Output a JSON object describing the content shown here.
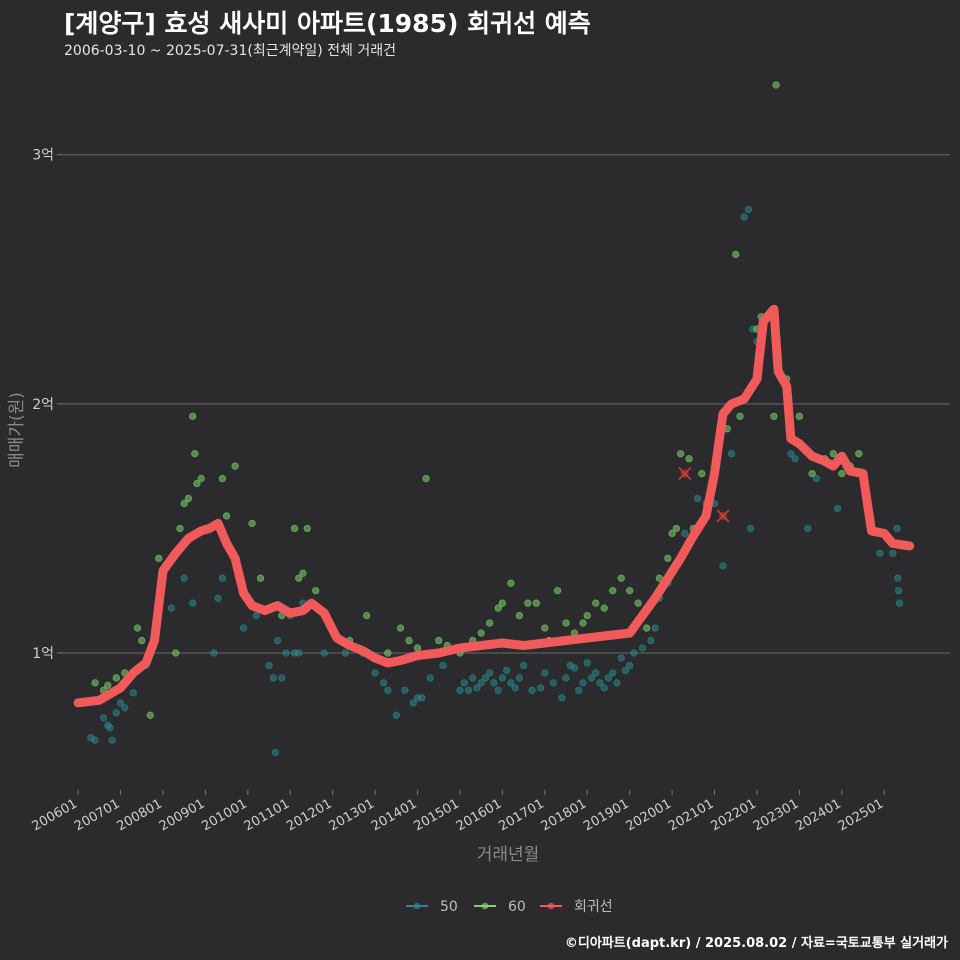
{
  "chart_data": {
    "type": "scatter",
    "title": "[계양구] 효성 새사미 아파트(1985) 회귀선 예측",
    "subtitle": "2006-03-10 ~ 2025-07-31(최근계약일) 전체 거래건",
    "xlabel": "거래년월",
    "ylabel": "매매가(원)",
    "ylim": [
      0.45,
      3.3
    ],
    "yticks": [
      {
        "value": 1,
        "label": "1억"
      },
      {
        "value": 2,
        "label": "2억"
      },
      {
        "value": 3,
        "label": "3억"
      }
    ],
    "xlim": [
      2005.62,
      2026.55
    ],
    "xticks": [
      {
        "value": 2006.0,
        "label": "200601"
      },
      {
        "value": 2007.0,
        "label": "200701"
      },
      {
        "value": 2008.0,
        "label": "200801"
      },
      {
        "value": 2009.0,
        "label": "200901"
      },
      {
        "value": 2010.0,
        "label": "201001"
      },
      {
        "value": 2011.0,
        "label": "201101"
      },
      {
        "value": 2012.0,
        "label": "201201"
      },
      {
        "value": 2013.0,
        "label": "201301"
      },
      {
        "value": 2014.0,
        "label": "201401"
      },
      {
        "value": 2015.0,
        "label": "201501"
      },
      {
        "value": 2016.0,
        "label": "201601"
      },
      {
        "value": 2017.0,
        "label": "201701"
      },
      {
        "value": 2018.0,
        "label": "201801"
      },
      {
        "value": 2019.0,
        "label": "201901"
      },
      {
        "value": 2020.0,
        "label": "202001"
      },
      {
        "value": 2021.0,
        "label": "202101"
      },
      {
        "value": 2022.0,
        "label": "202201"
      },
      {
        "value": 2023.0,
        "label": "202301"
      },
      {
        "value": 2024.0,
        "label": "202401"
      },
      {
        "value": 2025.0,
        "label": "202501"
      }
    ],
    "legend": {
      "position": "bottom",
      "items": [
        {
          "label": "50",
          "color": "#2a8a8a"
        },
        {
          "label": "60",
          "color": "#7ed36b"
        },
        {
          "label": "회귀선",
          "color": "#f05a5a"
        }
      ]
    },
    "series": [
      {
        "name": "50",
        "color": "#2a8a8a",
        "points": [
          [
            2006.3,
            0.66
          ],
          [
            2006.4,
            0.65
          ],
          [
            2006.6,
            0.74
          ],
          [
            2006.7,
            0.71
          ],
          [
            2006.75,
            0.7
          ],
          [
            2006.8,
            0.65
          ],
          [
            2006.9,
            0.76
          ],
          [
            2007.0,
            0.8
          ],
          [
            2007.1,
            0.78
          ],
          [
            2007.3,
            0.84
          ],
          [
            2007.6,
            0.95
          ],
          [
            2008.2,
            1.18
          ],
          [
            2008.5,
            1.3
          ],
          [
            2008.7,
            1.2
          ],
          [
            2009.2,
            1.0
          ],
          [
            2009.3,
            1.22
          ],
          [
            2009.4,
            1.3
          ],
          [
            2009.9,
            1.1
          ],
          [
            2010.2,
            1.15
          ],
          [
            2010.5,
            0.95
          ],
          [
            2010.6,
            0.9
          ],
          [
            2010.65,
            0.6
          ],
          [
            2010.7,
            1.05
          ],
          [
            2010.8,
            0.9
          ],
          [
            2010.9,
            1.0
          ],
          [
            2011.0,
            1.15
          ],
          [
            2011.1,
            1.0
          ],
          [
            2011.2,
            1.0
          ],
          [
            2011.3,
            1.2
          ],
          [
            2011.8,
            1.0
          ],
          [
            2012.3,
            1.0
          ],
          [
            2012.7,
            1.0
          ],
          [
            2013.0,
            0.92
          ],
          [
            2013.2,
            0.88
          ],
          [
            2013.3,
            0.85
          ],
          [
            2013.5,
            0.75
          ],
          [
            2013.7,
            0.85
          ],
          [
            2013.9,
            0.8
          ],
          [
            2014.0,
            0.82
          ],
          [
            2014.1,
            0.82
          ],
          [
            2014.3,
            0.9
          ],
          [
            2014.6,
            0.95
          ],
          [
            2015.0,
            0.85
          ],
          [
            2015.1,
            0.88
          ],
          [
            2015.2,
            0.85
          ],
          [
            2015.3,
            0.9
          ],
          [
            2015.4,
            0.86
          ],
          [
            2015.5,
            0.88
          ],
          [
            2015.6,
            0.9
          ],
          [
            2015.7,
            0.92
          ],
          [
            2015.8,
            0.88
          ],
          [
            2015.9,
            0.85
          ],
          [
            2016.0,
            0.9
          ],
          [
            2016.1,
            0.93
          ],
          [
            2016.2,
            0.88
          ],
          [
            2016.3,
            0.86
          ],
          [
            2016.4,
            0.9
          ],
          [
            2016.5,
            0.95
          ],
          [
            2016.7,
            0.85
          ],
          [
            2016.9,
            0.86
          ],
          [
            2017.0,
            0.92
          ],
          [
            2017.2,
            0.88
          ],
          [
            2017.4,
            0.82
          ],
          [
            2017.5,
            0.9
          ],
          [
            2017.6,
            0.95
          ],
          [
            2017.7,
            0.94
          ],
          [
            2017.8,
            0.85
          ],
          [
            2017.9,
            0.88
          ],
          [
            2018.0,
            0.96
          ],
          [
            2018.1,
            0.9
          ],
          [
            2018.2,
            0.92
          ],
          [
            2018.3,
            0.88
          ],
          [
            2018.4,
            0.86
          ],
          [
            2018.5,
            0.9
          ],
          [
            2018.6,
            0.92
          ],
          [
            2018.7,
            0.88
          ],
          [
            2018.8,
            0.98
          ],
          [
            2018.9,
            0.93
          ],
          [
            2019.0,
            0.95
          ],
          [
            2019.1,
            1.0
          ],
          [
            2019.3,
            1.02
          ],
          [
            2019.5,
            1.05
          ],
          [
            2019.6,
            1.1
          ],
          [
            2019.7,
            1.22
          ],
          [
            2019.9,
            1.28
          ],
          [
            2020.3,
            1.48
          ],
          [
            2020.6,
            1.62
          ],
          [
            2020.8,
            1.6
          ],
          [
            2021.0,
            1.6
          ],
          [
            2021.2,
            1.35
          ],
          [
            2021.4,
            1.8
          ],
          [
            2021.7,
            2.75
          ],
          [
            2021.8,
            2.78
          ],
          [
            2021.85,
            1.5
          ],
          [
            2021.9,
            2.3
          ],
          [
            2022.0,
            2.25
          ],
          [
            2022.8,
            1.8
          ],
          [
            2022.9,
            1.78
          ],
          [
            2023.2,
            1.5
          ],
          [
            2023.4,
            1.7
          ],
          [
            2023.9,
            1.58
          ],
          [
            2024.7,
            1.5
          ],
          [
            2024.9,
            1.4
          ],
          [
            2025.2,
            1.4
          ],
          [
            2025.3,
            1.5
          ],
          [
            2025.32,
            1.3
          ],
          [
            2025.34,
            1.25
          ],
          [
            2025.36,
            1.2
          ]
        ]
      },
      {
        "name": "60",
        "color": "#7ed36b",
        "points": [
          [
            2006.4,
            0.88
          ],
          [
            2006.6,
            0.85
          ],
          [
            2006.7,
            0.87
          ],
          [
            2006.9,
            0.9
          ],
          [
            2007.1,
            0.92
          ],
          [
            2007.4,
            1.1
          ],
          [
            2007.5,
            1.05
          ],
          [
            2007.7,
            0.75
          ],
          [
            2007.9,
            1.38
          ],
          [
            2008.3,
            1.0
          ],
          [
            2008.4,
            1.5
          ],
          [
            2008.5,
            1.6
          ],
          [
            2008.6,
            1.62
          ],
          [
            2008.7,
            1.95
          ],
          [
            2008.75,
            1.8
          ],
          [
            2008.8,
            1.68
          ],
          [
            2008.9,
            1.7
          ],
          [
            2009.0,
            1.5
          ],
          [
            2009.4,
            1.7
          ],
          [
            2009.5,
            1.55
          ],
          [
            2009.7,
            1.75
          ],
          [
            2010.1,
            1.52
          ],
          [
            2010.3,
            1.3
          ],
          [
            2010.8,
            1.15
          ],
          [
            2011.1,
            1.5
          ],
          [
            2011.2,
            1.3
          ],
          [
            2011.3,
            1.32
          ],
          [
            2011.4,
            1.5
          ],
          [
            2011.6,
            1.25
          ],
          [
            2012.0,
            1.1
          ],
          [
            2012.4,
            1.05
          ],
          [
            2012.8,
            1.15
          ],
          [
            2013.3,
            1.0
          ],
          [
            2013.6,
            1.1
          ],
          [
            2013.8,
            1.05
          ],
          [
            2014.0,
            1.02
          ],
          [
            2014.2,
            1.7
          ],
          [
            2014.5,
            1.05
          ],
          [
            2014.7,
            1.03
          ],
          [
            2015.0,
            1.0
          ],
          [
            2015.3,
            1.05
          ],
          [
            2015.5,
            1.08
          ],
          [
            2015.7,
            1.12
          ],
          [
            2015.9,
            1.18
          ],
          [
            2016.0,
            1.2
          ],
          [
            2016.2,
            1.28
          ],
          [
            2016.4,
            1.15
          ],
          [
            2016.6,
            1.2
          ],
          [
            2016.8,
            1.2
          ],
          [
            2017.0,
            1.1
          ],
          [
            2017.1,
            1.05
          ],
          [
            2017.3,
            1.25
          ],
          [
            2017.5,
            1.12
          ],
          [
            2017.7,
            1.08
          ],
          [
            2017.9,
            1.12
          ],
          [
            2018.0,
            1.15
          ],
          [
            2018.2,
            1.2
          ],
          [
            2018.4,
            1.18
          ],
          [
            2018.6,
            1.25
          ],
          [
            2018.8,
            1.3
          ],
          [
            2019.0,
            1.25
          ],
          [
            2019.2,
            1.2
          ],
          [
            2019.4,
            1.1
          ],
          [
            2019.7,
            1.3
          ],
          [
            2019.9,
            1.38
          ],
          [
            2020.0,
            1.48
          ],
          [
            2020.1,
            1.5
          ],
          [
            2020.2,
            1.8
          ],
          [
            2020.4,
            1.78
          ],
          [
            2020.5,
            1.5
          ],
          [
            2020.7,
            1.72
          ],
          [
            2021.1,
            1.85
          ],
          [
            2021.3,
            1.9
          ],
          [
            2021.5,
            2.6
          ],
          [
            2021.6,
            1.95
          ],
          [
            2022.0,
            2.3
          ],
          [
            2022.1,
            2.35
          ],
          [
            2022.4,
            1.95
          ],
          [
            2022.7,
            2.1
          ],
          [
            2023.0,
            1.95
          ],
          [
            2023.3,
            1.72
          ],
          [
            2023.6,
            1.78
          ],
          [
            2023.8,
            1.8
          ],
          [
            2024.0,
            1.72
          ],
          [
            2024.2,
            1.75
          ],
          [
            2024.4,
            1.8
          ],
          [
            2022.45,
            3.28
          ]
        ]
      }
    ],
    "regression": {
      "name": "회귀선",
      "color": "#f05a5a",
      "points": [
        [
          2006.0,
          0.8
        ],
        [
          2006.5,
          0.81
        ],
        [
          2007.0,
          0.86
        ],
        [
          2007.3,
          0.92
        ],
        [
          2007.6,
          0.96
        ],
        [
          2007.8,
          1.05
        ],
        [
          2008.0,
          1.33
        ],
        [
          2008.3,
          1.4
        ],
        [
          2008.6,
          1.46
        ],
        [
          2008.9,
          1.49
        ],
        [
          2009.1,
          1.5
        ],
        [
          2009.3,
          1.52
        ],
        [
          2009.5,
          1.44
        ],
        [
          2009.7,
          1.38
        ],
        [
          2009.9,
          1.24
        ],
        [
          2010.1,
          1.19
        ],
        [
          2010.4,
          1.17
        ],
        [
          2010.7,
          1.19
        ],
        [
          2011.0,
          1.16
        ],
        [
          2011.3,
          1.17
        ],
        [
          2011.5,
          1.2
        ],
        [
          2011.8,
          1.16
        ],
        [
          2012.1,
          1.06
        ],
        [
          2012.4,
          1.03
        ],
        [
          2012.7,
          1.01
        ],
        [
          2013.0,
          0.98
        ],
        [
          2013.3,
          0.96
        ],
        [
          2013.6,
          0.97
        ],
        [
          2014.0,
          0.99
        ],
        [
          2014.5,
          1.0
        ],
        [
          2015.0,
          1.02
        ],
        [
          2015.5,
          1.03
        ],
        [
          2016.0,
          1.04
        ],
        [
          2016.5,
          1.03
        ],
        [
          2017.0,
          1.04
        ],
        [
          2017.5,
          1.05
        ],
        [
          2018.0,
          1.06
        ],
        [
          2018.5,
          1.07
        ],
        [
          2019.0,
          1.08
        ],
        [
          2019.3,
          1.15
        ],
        [
          2019.6,
          1.22
        ],
        [
          2019.9,
          1.3
        ],
        [
          2020.2,
          1.38
        ],
        [
          2020.5,
          1.47
        ],
        [
          2020.8,
          1.55
        ],
        [
          2021.0,
          1.72
        ],
        [
          2021.2,
          1.96
        ],
        [
          2021.4,
          2.0
        ],
        [
          2021.7,
          2.02
        ],
        [
          2022.0,
          2.1
        ],
        [
          2022.15,
          2.33
        ],
        [
          2022.4,
          2.38
        ],
        [
          2022.5,
          2.13
        ],
        [
          2022.7,
          2.07
        ],
        [
          2022.8,
          1.86
        ],
        [
          2023.0,
          1.84
        ],
        [
          2023.3,
          1.79
        ],
        [
          2023.6,
          1.77
        ],
        [
          2023.8,
          1.75
        ],
        [
          2024.0,
          1.79
        ],
        [
          2024.2,
          1.73
        ],
        [
          2024.5,
          1.72
        ],
        [
          2024.7,
          1.49
        ],
        [
          2025.0,
          1.48
        ],
        [
          2025.2,
          1.44
        ],
        [
          2025.6,
          1.43
        ]
      ]
    },
    "markers": [
      {
        "x": 2020.3,
        "y": 1.72
      },
      {
        "x": 2021.2,
        "y": 1.55
      }
    ]
  },
  "footer": {
    "credit": "©디아파트(dapt.kr) / 2025.08.02 / 자료=국토교통부 실거래가"
  }
}
